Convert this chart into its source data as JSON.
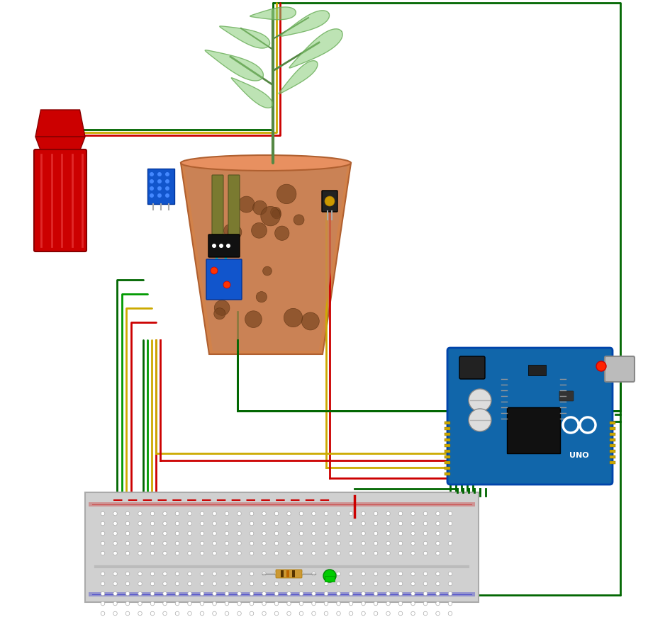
{
  "bg_color": "#ffffff",
  "wire_dark_green": "#006600",
  "wire_green": "#009900",
  "wire_yellow": "#CCAA00",
  "wire_red": "#CC0000",
  "wire_cyan": "#00CCCC",
  "arduino_blue": "#1166AA",
  "breadboard_gray": "#CCCCCC",
  "sensor_blue": "#1155CC",
  "pot_color": "#D2824A",
  "soil_color": "#8B5E3C",
  "plant_green": "#66AA44",
  "pump_red": "#CC0000",
  "pump_stripe": "#FF6666",
  "ldr_gold": "#CC9900",
  "res_body": "#CC9933",
  "led_green": "#00CC00",
  "breadboard_white": "#DDDDDD"
}
